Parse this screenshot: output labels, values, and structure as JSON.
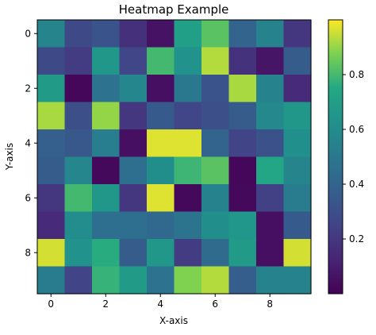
{
  "chart_data": {
    "type": "heatmap",
    "title": "Heatmap Example",
    "xlabel": "X-axis",
    "ylabel": "Y-axis",
    "xticks": [
      0,
      2,
      4,
      6,
      8
    ],
    "yticks": [
      0,
      2,
      4,
      6,
      8
    ],
    "colorbar": {
      "ticks": [
        0.2,
        0.4,
        0.6,
        0.8
      ],
      "range": [
        0.0,
        1.0
      ],
      "colormap": "viridis"
    },
    "grid": false,
    "values": [
      [
        0.56,
        0.28,
        0.32,
        0.17,
        0.06,
        0.7,
        0.83,
        0.4,
        0.55,
        0.2
      ],
      [
        0.28,
        0.22,
        0.66,
        0.26,
        0.8,
        0.63,
        0.93,
        0.18,
        0.07,
        0.36
      ],
      [
        0.68,
        0.02,
        0.47,
        0.57,
        0.05,
        0.5,
        0.32,
        0.92,
        0.55,
        0.15
      ],
      [
        0.92,
        0.3,
        0.9,
        0.2,
        0.35,
        0.26,
        0.3,
        0.36,
        0.58,
        0.66
      ],
      [
        0.38,
        0.34,
        0.53,
        0.05,
        0.97,
        0.97,
        0.4,
        0.25,
        0.31,
        0.62
      ],
      [
        0.36,
        0.57,
        0.03,
        0.45,
        0.61,
        0.79,
        0.83,
        0.02,
        0.74,
        0.56
      ],
      [
        0.2,
        0.8,
        0.66,
        0.2,
        0.97,
        0.03,
        0.55,
        0.03,
        0.24,
        0.52
      ],
      [
        0.15,
        0.6,
        0.45,
        0.45,
        0.42,
        0.48,
        0.61,
        0.65,
        0.05,
        0.35
      ],
      [
        0.96,
        0.63,
        0.76,
        0.36,
        0.66,
        0.22,
        0.43,
        0.68,
        0.05,
        0.96
      ],
      [
        0.52,
        0.25,
        0.78,
        0.68,
        0.47,
        0.88,
        0.93,
        0.37,
        0.55,
        0.55
      ]
    ]
  }
}
